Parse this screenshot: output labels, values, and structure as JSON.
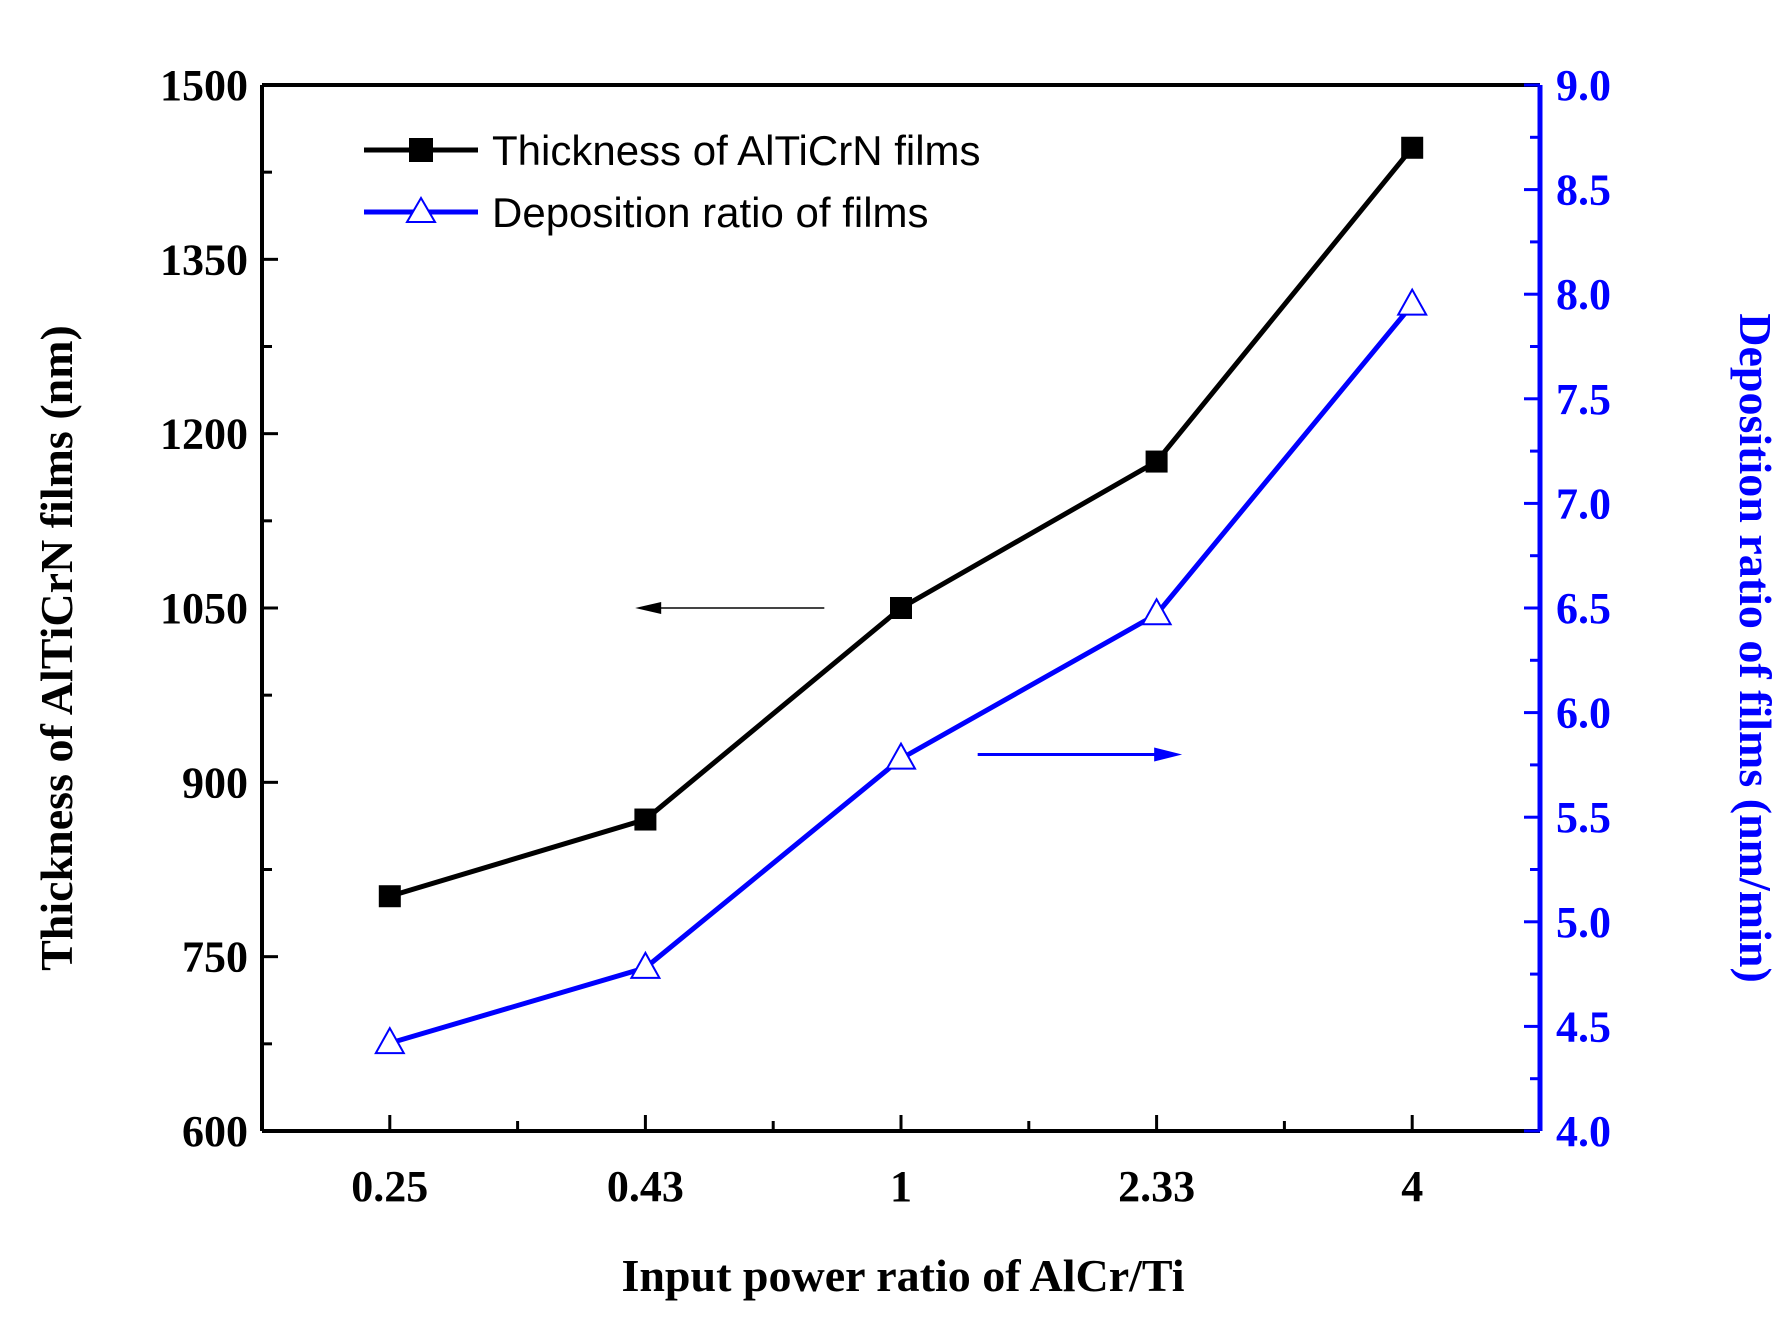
{
  "chart_data": {
    "type": "line",
    "categories": [
      "0.25",
      "0.43",
      "1",
      "2.33",
      "4"
    ],
    "xlabel": "Input power ratio of AlCr/Ti",
    "y_left": {
      "label": "Thickness of AlTiCrN films (nm)",
      "range": [
        600,
        1500
      ],
      "ticks": [
        "600",
        "750",
        "900",
        "1050",
        "1200",
        "1350",
        "1500"
      ],
      "minor_step": 75,
      "color": "#000000"
    },
    "y_right": {
      "label": "Deposition ratio of  films (nm/min)",
      "range": [
        4.0,
        9.0
      ],
      "ticks": [
        "4.0",
        "4.5",
        "5.0",
        "5.5",
        "6.0",
        "6.5",
        "7.0",
        "7.5",
        "8.0",
        "8.5",
        "9.0"
      ],
      "minor_step": 0.25,
      "color": "#0000ff"
    },
    "series": [
      {
        "name": "Thickness of AlTiCrN films",
        "axis": "left",
        "marker": "filled-square",
        "color": "#000000",
        "values": [
          802,
          868,
          1050,
          1176,
          1446
        ]
      },
      {
        "name": "Deposition ratio of films",
        "axis": "right",
        "marker": "open-triangle",
        "color": "#0000ff",
        "values": [
          4.42,
          4.78,
          5.78,
          6.47,
          7.95
        ]
      }
    ],
    "annotations": [
      {
        "type": "arrow",
        "direction": "left",
        "points_to": "left-axis",
        "color": "#000000"
      },
      {
        "type": "arrow",
        "direction": "right",
        "points_to": "right-axis",
        "color": "#0000ff"
      }
    ],
    "legend": "top-left",
    "grid": false
  }
}
